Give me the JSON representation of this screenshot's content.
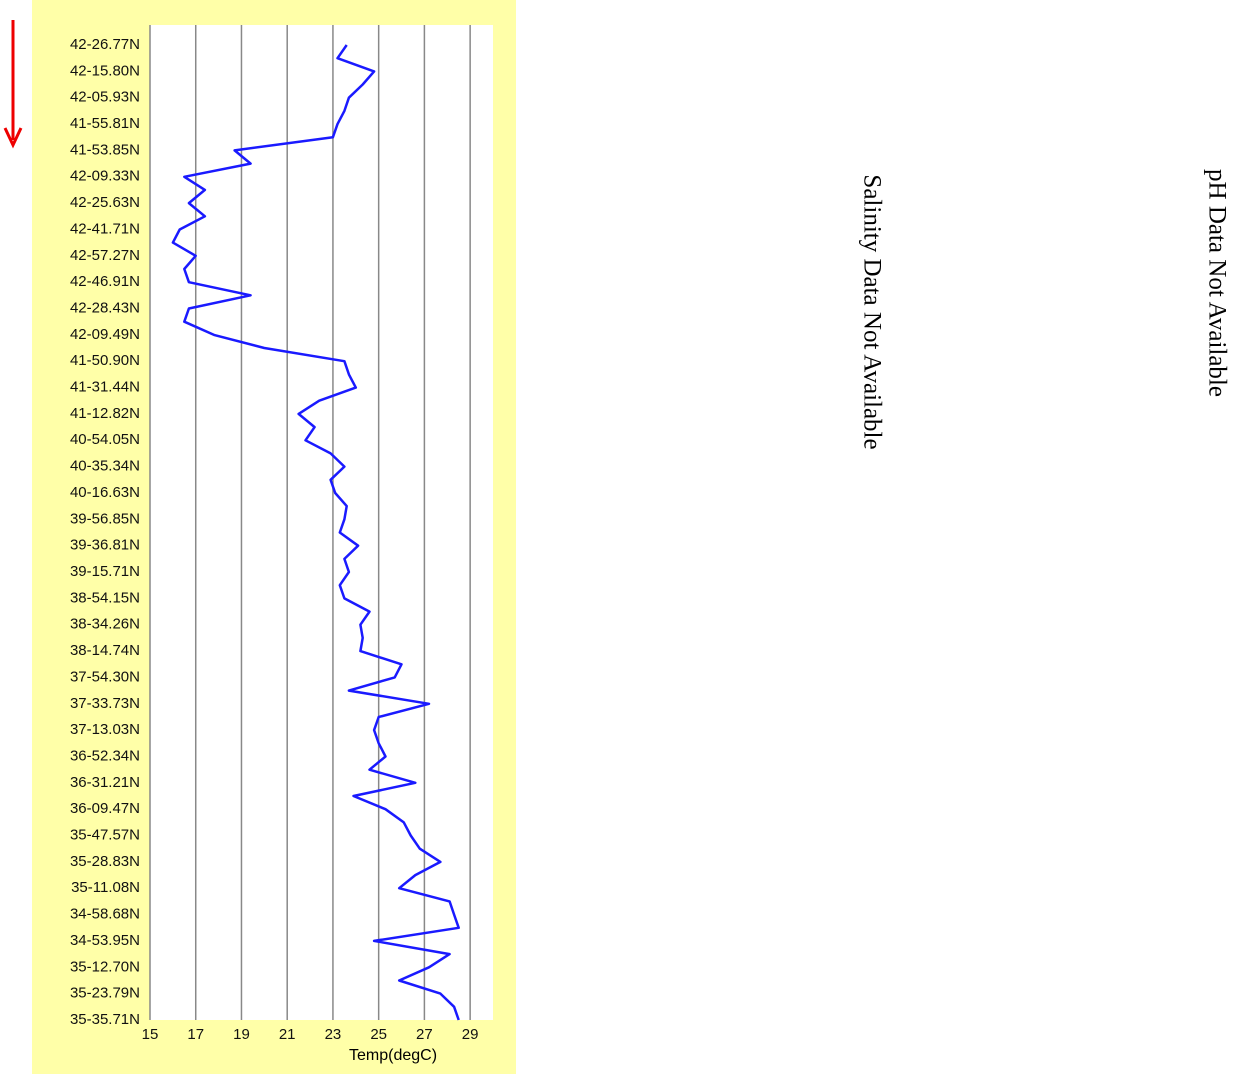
{
  "chart_data": {
    "type": "line",
    "x_label": "Temp(degC)",
    "color": "#1a1aff",
    "grid": true,
    "xlim": [
      15,
      30
    ],
    "xticks": [
      15,
      17,
      19,
      21,
      23,
      25,
      27,
      29
    ],
    "categories": [
      "42-26.77N",
      null,
      "42-15.80N",
      null,
      "42-05.93N",
      null,
      "41-55.81N",
      null,
      "41-53.85N",
      null,
      "42-09.33N",
      null,
      "42-25.63N",
      null,
      "42-41.71N",
      null,
      "42-57.27N",
      null,
      "42-46.91N",
      null,
      "42-28.43N",
      null,
      "42-09.49N",
      null,
      "41-50.90N",
      null,
      "41-31.44N",
      null,
      "41-12.82N",
      null,
      "40-54.05N",
      null,
      "40-35.34N",
      null,
      "40-16.63N",
      null,
      "39-56.85N",
      null,
      "39-36.81N",
      null,
      "39-15.71N",
      null,
      "38-54.15N",
      null,
      "38-34.26N",
      null,
      "38-14.74N",
      null,
      "37-54.30N",
      null,
      "37-33.73N",
      null,
      "37-13.03N",
      null,
      "36-52.34N",
      null,
      "36-31.21N",
      null,
      "36-09.47N",
      null,
      "35-47.57N",
      null,
      "35-28.83N",
      null,
      "35-11.08N",
      null,
      "34-58.68N",
      null,
      "34-53.95N",
      null,
      "35-12.70N",
      null,
      "35-23.79N",
      null,
      "35-35.71N"
    ],
    "values": [
      23.6,
      23.2,
      24.8,
      24.3,
      23.7,
      23.5,
      23.2,
      23.0,
      18.7,
      19.4,
      16.5,
      17.4,
      16.7,
      17.4,
      16.3,
      16.0,
      17.0,
      16.5,
      16.7,
      19.4,
      16.7,
      16.5,
      17.8,
      20.0,
      23.5,
      23.7,
      24.0,
      22.4,
      21.5,
      22.2,
      21.8,
      22.9,
      23.5,
      22.9,
      23.1,
      23.6,
      23.5,
      23.3,
      24.1,
      23.5,
      23.7,
      23.3,
      23.5,
      24.6,
      24.2,
      24.3,
      24.2,
      26.0,
      25.7,
      23.7,
      27.2,
      25.0,
      24.8,
      25.0,
      25.3,
      24.6,
      26.6,
      23.9,
      25.3,
      26.1,
      26.4,
      26.8,
      27.7,
      26.6,
      25.9,
      28.1,
      28.3,
      28.5,
      24.8,
      28.1,
      27.2,
      25.9,
      27.7,
      28.3,
      28.5
    ]
  },
  "messages": {
    "salinity": "Salinity Data Not Available",
    "ph": "pH Data Not Available"
  }
}
